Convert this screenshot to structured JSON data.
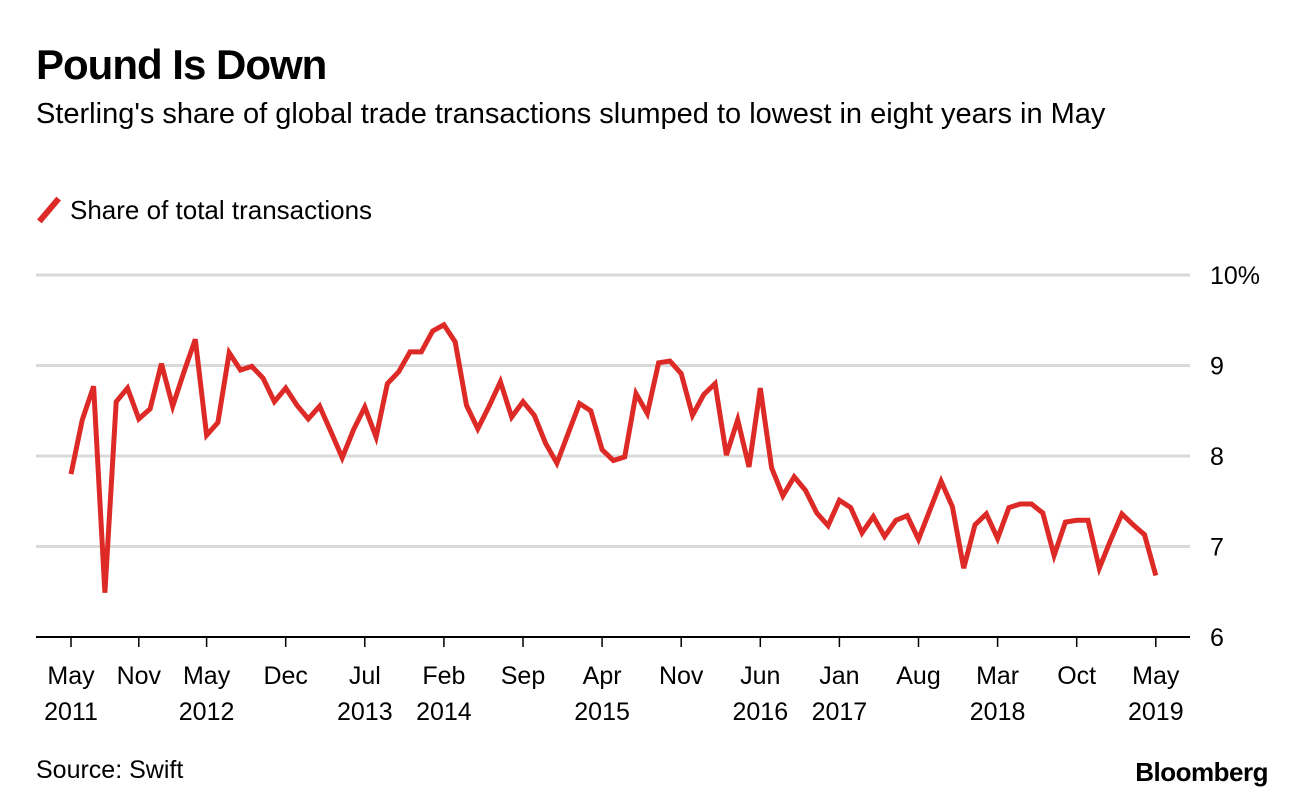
{
  "header": {
    "title": "Pound Is Down",
    "subtitle": "Sterling's share of global trade transactions slumped to lowest in eight years in May"
  },
  "legend": {
    "label": "Share of total transactions",
    "color": "#dd2a26"
  },
  "footer": {
    "source": "Source: Swift",
    "brand": "Bloomberg"
  },
  "chart_data": {
    "type": "line",
    "title": "Pound Is Down",
    "subtitle": "Sterling's share of global trade transactions slumped to lowest in eight years in May",
    "xlabel": "",
    "ylabel": "",
    "ylim": [
      6,
      10
    ],
    "yticks": [
      {
        "value": 10,
        "label": "10%"
      },
      {
        "value": 9,
        "label": "9"
      },
      {
        "value": 8,
        "label": "8"
      },
      {
        "value": 7,
        "label": "7"
      },
      {
        "value": 6,
        "label": "6"
      }
    ],
    "x_start": "2011-05",
    "x_frequency": "monthly",
    "xticks": [
      {
        "month_index": 0,
        "line1": "May",
        "line2": "2011"
      },
      {
        "month_index": 6,
        "line1": "Nov",
        "line2": ""
      },
      {
        "month_index": 12,
        "line1": "May",
        "line2": "2012"
      },
      {
        "month_index": 19,
        "line1": "Dec",
        "line2": ""
      },
      {
        "month_index": 26,
        "line1": "Jul",
        "line2": "2013"
      },
      {
        "month_index": 33,
        "line1": "Feb",
        "line2": "2014"
      },
      {
        "month_index": 40,
        "line1": "Sep",
        "line2": ""
      },
      {
        "month_index": 47,
        "line1": "Apr",
        "line2": "2015"
      },
      {
        "month_index": 54,
        "line1": "Nov",
        "line2": ""
      },
      {
        "month_index": 61,
        "line1": "Jun",
        "line2": "2016"
      },
      {
        "month_index": 68,
        "line1": "Jan",
        "line2": "2017"
      },
      {
        "month_index": 75,
        "line1": "Aug",
        "line2": ""
      },
      {
        "month_index": 82,
        "line1": "Mar",
        "line2": "2018"
      },
      {
        "month_index": 89,
        "line1": "Oct",
        "line2": ""
      },
      {
        "month_index": 96,
        "line1": "May",
        "line2": "2019"
      }
    ],
    "grid": true,
    "legend_position": "top-left",
    "series": [
      {
        "name": "Share of total transactions",
        "color": "#dd2a26",
        "values": [
          7.8,
          8.4,
          8.77,
          6.49,
          8.6,
          8.75,
          8.41,
          8.52,
          9.02,
          8.55,
          8.93,
          9.29,
          8.23,
          8.37,
          9.14,
          8.95,
          8.99,
          8.86,
          8.6,
          8.75,
          8.56,
          8.41,
          8.55,
          8.27,
          7.98,
          8.29,
          8.54,
          8.21,
          8.8,
          8.93,
          9.15,
          9.15,
          9.38,
          9.45,
          9.26,
          8.56,
          8.3,
          8.55,
          8.82,
          8.43,
          8.6,
          8.45,
          8.14,
          7.92,
          8.25,
          8.58,
          8.5,
          8.07,
          7.95,
          7.99,
          8.69,
          8.47,
          9.03,
          9.05,
          8.91,
          8.45,
          8.68,
          8.8,
          8.01,
          8.4,
          7.88,
          8.75,
          7.87,
          7.56,
          7.77,
          7.62,
          7.37,
          7.23,
          7.51,
          7.43,
          7.15,
          7.33,
          7.11,
          7.29,
          7.34,
          7.08,
          7.4,
          7.72,
          7.44,
          6.76,
          7.24,
          7.36,
          7.09,
          7.43,
          7.47,
          7.47,
          7.37,
          6.9,
          7.27,
          7.29,
          7.29,
          6.76,
          7.07,
          7.36,
          7.24,
          7.13,
          6.68
        ]
      }
    ]
  }
}
